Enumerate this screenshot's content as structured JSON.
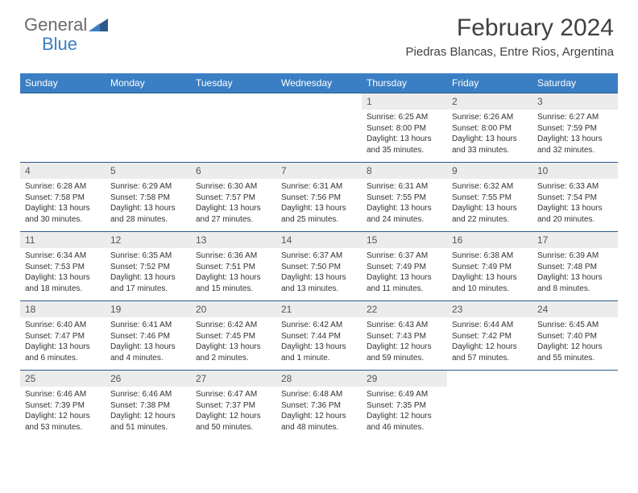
{
  "brand": {
    "general": "General",
    "blue": "Blue"
  },
  "title": "February 2024",
  "location": "Piedras Blancas, Entre Rios, Argentina",
  "colors": {
    "header_bg": "#3a7fc4",
    "header_text": "#ffffff",
    "daynum_bg": "#ececec",
    "daynum_text": "#555555",
    "body_text": "#333333",
    "border": "#2d5a8a",
    "title_text": "#404040"
  },
  "days_of_week": [
    "Sunday",
    "Monday",
    "Tuesday",
    "Wednesday",
    "Thursday",
    "Friday",
    "Saturday"
  ],
  "weeks": [
    [
      null,
      null,
      null,
      null,
      {
        "n": "1",
        "sr": "6:25 AM",
        "ss": "8:00 PM",
        "dl": "13 hours and 35 minutes."
      },
      {
        "n": "2",
        "sr": "6:26 AM",
        "ss": "8:00 PM",
        "dl": "13 hours and 33 minutes."
      },
      {
        "n": "3",
        "sr": "6:27 AM",
        "ss": "7:59 PM",
        "dl": "13 hours and 32 minutes."
      }
    ],
    [
      {
        "n": "4",
        "sr": "6:28 AM",
        "ss": "7:58 PM",
        "dl": "13 hours and 30 minutes."
      },
      {
        "n": "5",
        "sr": "6:29 AM",
        "ss": "7:58 PM",
        "dl": "13 hours and 28 minutes."
      },
      {
        "n": "6",
        "sr": "6:30 AM",
        "ss": "7:57 PM",
        "dl": "13 hours and 27 minutes."
      },
      {
        "n": "7",
        "sr": "6:31 AM",
        "ss": "7:56 PM",
        "dl": "13 hours and 25 minutes."
      },
      {
        "n": "8",
        "sr": "6:31 AM",
        "ss": "7:55 PM",
        "dl": "13 hours and 24 minutes."
      },
      {
        "n": "9",
        "sr": "6:32 AM",
        "ss": "7:55 PM",
        "dl": "13 hours and 22 minutes."
      },
      {
        "n": "10",
        "sr": "6:33 AM",
        "ss": "7:54 PM",
        "dl": "13 hours and 20 minutes."
      }
    ],
    [
      {
        "n": "11",
        "sr": "6:34 AM",
        "ss": "7:53 PM",
        "dl": "13 hours and 18 minutes."
      },
      {
        "n": "12",
        "sr": "6:35 AM",
        "ss": "7:52 PM",
        "dl": "13 hours and 17 minutes."
      },
      {
        "n": "13",
        "sr": "6:36 AM",
        "ss": "7:51 PM",
        "dl": "13 hours and 15 minutes."
      },
      {
        "n": "14",
        "sr": "6:37 AM",
        "ss": "7:50 PM",
        "dl": "13 hours and 13 minutes."
      },
      {
        "n": "15",
        "sr": "6:37 AM",
        "ss": "7:49 PM",
        "dl": "13 hours and 11 minutes."
      },
      {
        "n": "16",
        "sr": "6:38 AM",
        "ss": "7:49 PM",
        "dl": "13 hours and 10 minutes."
      },
      {
        "n": "17",
        "sr": "6:39 AM",
        "ss": "7:48 PM",
        "dl": "13 hours and 8 minutes."
      }
    ],
    [
      {
        "n": "18",
        "sr": "6:40 AM",
        "ss": "7:47 PM",
        "dl": "13 hours and 6 minutes."
      },
      {
        "n": "19",
        "sr": "6:41 AM",
        "ss": "7:46 PM",
        "dl": "13 hours and 4 minutes."
      },
      {
        "n": "20",
        "sr": "6:42 AM",
        "ss": "7:45 PM",
        "dl": "13 hours and 2 minutes."
      },
      {
        "n": "21",
        "sr": "6:42 AM",
        "ss": "7:44 PM",
        "dl": "13 hours and 1 minute."
      },
      {
        "n": "22",
        "sr": "6:43 AM",
        "ss": "7:43 PM",
        "dl": "12 hours and 59 minutes."
      },
      {
        "n": "23",
        "sr": "6:44 AM",
        "ss": "7:42 PM",
        "dl": "12 hours and 57 minutes."
      },
      {
        "n": "24",
        "sr": "6:45 AM",
        "ss": "7:40 PM",
        "dl": "12 hours and 55 minutes."
      }
    ],
    [
      {
        "n": "25",
        "sr": "6:46 AM",
        "ss": "7:39 PM",
        "dl": "12 hours and 53 minutes."
      },
      {
        "n": "26",
        "sr": "6:46 AM",
        "ss": "7:38 PM",
        "dl": "12 hours and 51 minutes."
      },
      {
        "n": "27",
        "sr": "6:47 AM",
        "ss": "7:37 PM",
        "dl": "12 hours and 50 minutes."
      },
      {
        "n": "28",
        "sr": "6:48 AM",
        "ss": "7:36 PM",
        "dl": "12 hours and 48 minutes."
      },
      {
        "n": "29",
        "sr": "6:49 AM",
        "ss": "7:35 PM",
        "dl": "12 hours and 46 minutes."
      },
      null,
      null
    ]
  ],
  "labels": {
    "sunrise": "Sunrise:",
    "sunset": "Sunset:",
    "daylight": "Daylight:"
  }
}
